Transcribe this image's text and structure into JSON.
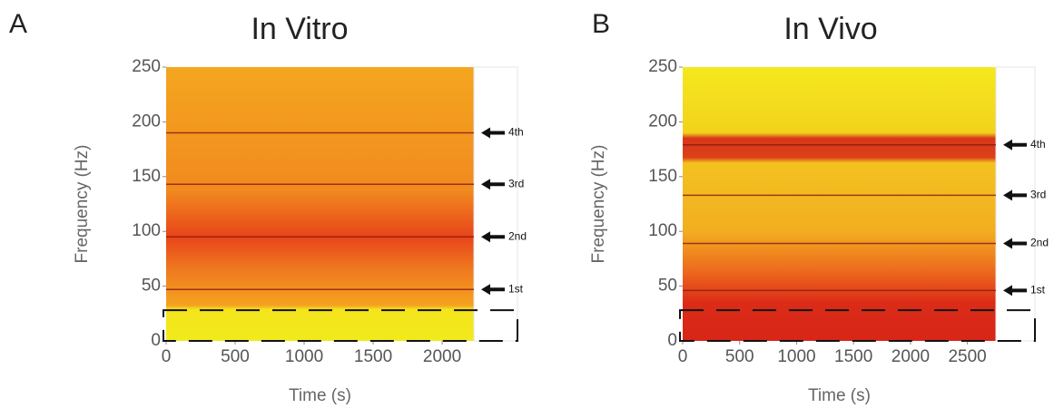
{
  "chart_data": [
    {
      "type": "spectrogram",
      "panel": "A",
      "title": "In Vitro",
      "x_label": "Time (s)",
      "y_label": "Frequency (Hz)",
      "xlim": [
        0,
        2230
      ],
      "ylim": [
        0,
        250
      ],
      "xticks": [
        0,
        500,
        1000,
        1500,
        2000
      ],
      "yticks": [
        0,
        50,
        100,
        150,
        200,
        250
      ],
      "harmonics": [
        {
          "label": "1st",
          "value": 47
        },
        {
          "label": "2nd",
          "value": 95
        },
        {
          "label": "3rd",
          "value": 143
        },
        {
          "label": "4th",
          "value": 190
        }
      ],
      "highlight_ylim": [
        0,
        28
      ]
    },
    {
      "type": "spectrogram",
      "panel": "B",
      "title": "In Vivo",
      "x_label": "Time (s)",
      "y_label": "Frequency (Hz)",
      "xlim": [
        0,
        2750
      ],
      "ylim": [
        0,
        250
      ],
      "xticks": [
        0,
        500,
        1000,
        1500,
        2000,
        2500
      ],
      "yticks": [
        0,
        50,
        100,
        150,
        200,
        250
      ],
      "harmonics": [
        {
          "label": "1st",
          "value": 46
        },
        {
          "label": "2nd",
          "value": 89
        },
        {
          "label": "3rd",
          "value": 133
        },
        {
          "label": "4th",
          "value": 179
        }
      ],
      "highlight_ylim": [
        0,
        28
      ]
    }
  ]
}
